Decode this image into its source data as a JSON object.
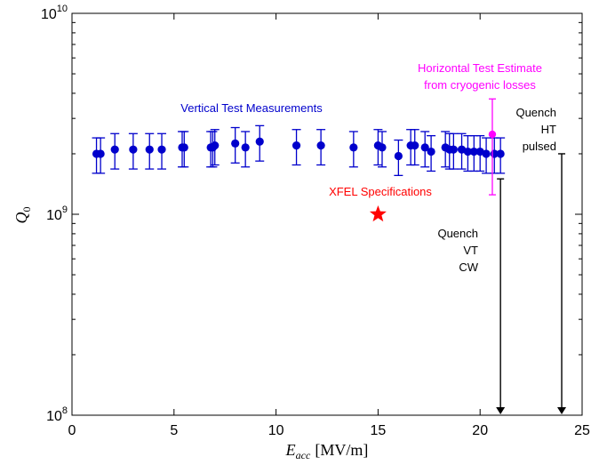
{
  "chart_data": {
    "type": "scatter",
    "xlabel": "E",
    "xlabel_sub": "acc",
    "xlabel_unit": "[MV/m]",
    "ylabel": "Q",
    "ylabel_sub": "0",
    "xlim": [
      0,
      25
    ],
    "ylim": [
      100000000,
      10000000000
    ],
    "y_scale": "log",
    "grid": false,
    "x_ticks": [
      {
        "value": 0,
        "label": "0"
      },
      {
        "value": 5,
        "label": "5"
      },
      {
        "value": 10,
        "label": "10"
      },
      {
        "value": 15,
        "label": "15"
      },
      {
        "value": 20,
        "label": "20"
      },
      {
        "value": 25,
        "label": "25"
      }
    ],
    "y_ticks": [
      {
        "value": 100000000,
        "base": "10",
        "exp": "8"
      },
      {
        "value": 1000000000,
        "base": "10",
        "exp": "9"
      },
      {
        "value": 10000000000,
        "base": "10",
        "exp": "10"
      }
    ],
    "colors": {
      "vertical": "#0000cc",
      "horizontal": "#ff00ff",
      "xfel": "#ff0000",
      "quench": "#000000"
    },
    "series": [
      {
        "name": "Vertical Test Measurements",
        "error_fraction": 0.2,
        "x": [
          1.2,
          1.4,
          2.1,
          3.0,
          3.8,
          4.4,
          5.4,
          5.5,
          6.8,
          6.9,
          7.0,
          8.0,
          8.5,
          9.2,
          11.0,
          12.2,
          13.8,
          15.0,
          15.2,
          16.0,
          16.6,
          16.8,
          17.3,
          17.6,
          18.3,
          18.5,
          18.7,
          19.1,
          19.4,
          19.7,
          20.0,
          20.3,
          20.7,
          21.0
        ],
        "y": [
          2000000000.0,
          2000000000.0,
          2100000000.0,
          2100000000.0,
          2100000000.0,
          2100000000.0,
          2150000000.0,
          2150000000.0,
          2150000000.0,
          2150000000.0,
          2200000000.0,
          2250000000.0,
          2150000000.0,
          2300000000.0,
          2200000000.0,
          2200000000.0,
          2150000000.0,
          2200000000.0,
          2150000000.0,
          1950000000.0,
          2200000000.0,
          2200000000.0,
          2150000000.0,
          2050000000.0,
          2150000000.0,
          2100000000.0,
          2100000000.0,
          2100000000.0,
          2050000000.0,
          2050000000.0,
          2050000000.0,
          2000000000.0,
          2000000000.0,
          2000000000.0
        ]
      },
      {
        "name": "Horizontal Test Estimate",
        "x": [
          20.6
        ],
        "y": [
          2500000000.0
        ],
        "y_err_low": [
          1250000000.0
        ],
        "y_err_high": [
          3750000000.0
        ]
      },
      {
        "name": "XFEL Specifications",
        "x": [
          15.0
        ],
        "y": [
          1000000000.0
        ]
      }
    ],
    "quench_lines": [
      {
        "x": 21.0,
        "y_top": 1500000000.0
      },
      {
        "x": 24.0,
        "y_top": 2000000000.0
      }
    ],
    "annotations": {
      "vertical": "Vertical Test Measurements",
      "horizontal_line1": "Horizontal Test Estimate",
      "horizontal_line2": "from cryogenic losses",
      "xfel": "XFEL Specifications",
      "quench_vt": [
        "Quench",
        "VT",
        "CW"
      ],
      "quench_ht": [
        "Quench",
        "HT",
        "pulsed"
      ]
    }
  }
}
